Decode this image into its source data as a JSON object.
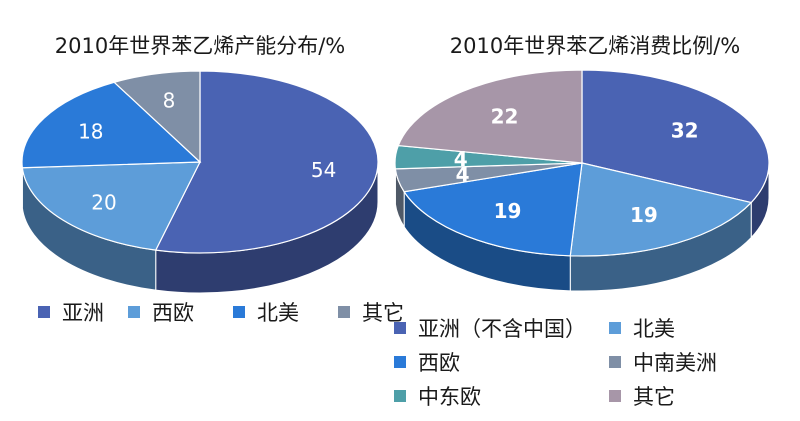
{
  "chart_data": [
    {
      "type": "pie",
      "title": "2010年世界苯乙烯产能分布/%",
      "categories": [
        "亚洲",
        "西欧",
        "北美",
        "其它"
      ],
      "values": [
        54,
        20,
        18,
        8
      ],
      "colors": [
        "#4a63b3",
        "#5d9dd9",
        "#2a7ad8",
        "#7f8fa6"
      ],
      "legend": "bottom"
    },
    {
      "type": "pie",
      "title": "2010年世界苯乙烯消费比例/%",
      "categories": [
        "亚洲（不含中国）",
        "北美",
        "西欧",
        "中南美洲",
        "中东欧",
        "其它"
      ],
      "values": [
        32,
        19,
        19,
        4,
        4,
        22
      ],
      "colors": [
        "#4a63b3",
        "#5d9dd9",
        "#2a7ad8",
        "#7f8fa6",
        "#4e9fa8",
        "#a796a8"
      ],
      "legend": "bottom"
    }
  ]
}
